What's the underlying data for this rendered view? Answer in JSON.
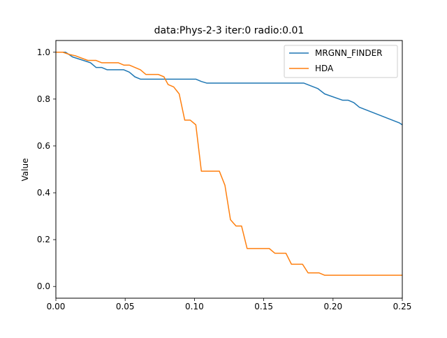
{
  "chart_data": {
    "type": "line",
    "title": "data:Phys-2-3 iter:0 radio:0.01",
    "xlabel": "",
    "ylabel": "Value",
    "xlim": [
      0.0,
      0.25
    ],
    "ylim": [
      -0.05,
      1.05
    ],
    "grid": false,
    "legend_position": "top-right",
    "x_ticks": [
      "0.00",
      "0.05",
      "0.10",
      "0.15",
      "0.20",
      "0.25"
    ],
    "y_ticks": [
      "0.0",
      "0.2",
      "0.4",
      "0.6",
      "0.8",
      "1.0"
    ],
    "series": [
      {
        "name": "MRGNN_FINDER",
        "color": "#1f77b4",
        "points": [
          [
            0.0,
            1.0
          ],
          [
            0.007,
            1.0
          ],
          [
            0.012,
            0.98
          ],
          [
            0.025,
            0.955
          ],
          [
            0.029,
            0.935
          ],
          [
            0.033,
            0.935
          ],
          [
            0.037,
            0.925
          ],
          [
            0.049,
            0.925
          ],
          [
            0.053,
            0.915
          ],
          [
            0.057,
            0.895
          ],
          [
            0.061,
            0.885
          ],
          [
            0.101,
            0.885
          ],
          [
            0.105,
            0.875
          ],
          [
            0.109,
            0.868
          ],
          [
            0.179,
            0.868
          ],
          [
            0.189,
            0.845
          ],
          [
            0.194,
            0.822
          ],
          [
            0.207,
            0.795
          ],
          [
            0.211,
            0.795
          ],
          [
            0.215,
            0.785
          ],
          [
            0.219,
            0.765
          ],
          [
            0.248,
            0.698
          ],
          [
            0.25,
            0.69
          ]
        ]
      },
      {
        "name": "HDA",
        "color": "#ff7f0e",
        "points": [
          [
            0.0,
            1.0
          ],
          [
            0.005,
            1.0
          ],
          [
            0.01,
            0.99
          ],
          [
            0.014,
            0.985
          ],
          [
            0.023,
            0.965
          ],
          [
            0.029,
            0.965
          ],
          [
            0.033,
            0.955
          ],
          [
            0.045,
            0.955
          ],
          [
            0.049,
            0.945
          ],
          [
            0.053,
            0.945
          ],
          [
            0.061,
            0.925
          ],
          [
            0.065,
            0.905
          ],
          [
            0.074,
            0.905
          ],
          [
            0.078,
            0.895
          ],
          [
            0.081,
            0.862
          ],
          [
            0.085,
            0.852
          ],
          [
            0.089,
            0.822
          ],
          [
            0.093,
            0.71
          ],
          [
            0.097,
            0.71
          ],
          [
            0.101,
            0.69
          ],
          [
            0.105,
            0.492
          ],
          [
            0.118,
            0.492
          ],
          [
            0.122,
            0.432
          ],
          [
            0.126,
            0.285
          ],
          [
            0.13,
            0.258
          ],
          [
            0.134,
            0.258
          ],
          [
            0.138,
            0.162
          ],
          [
            0.154,
            0.162
          ],
          [
            0.158,
            0.142
          ],
          [
            0.166,
            0.142
          ],
          [
            0.17,
            0.095
          ],
          [
            0.178,
            0.095
          ],
          [
            0.182,
            0.058
          ],
          [
            0.19,
            0.058
          ],
          [
            0.194,
            0.048
          ],
          [
            0.25,
            0.048
          ]
        ]
      }
    ]
  }
}
